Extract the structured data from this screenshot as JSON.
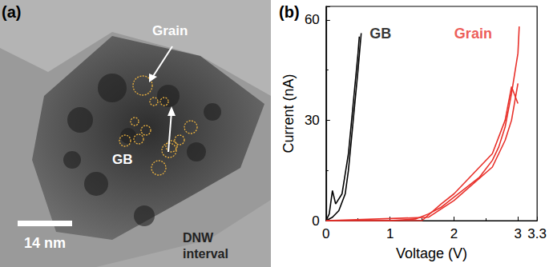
{
  "chart_data": {
    "type": "line",
    "title": "(b)",
    "x_label": "Voltage (V)",
    "y_label": "Current (nA)",
    "xlim": [
      0,
      3.3
    ],
    "xticks": [
      0,
      1,
      2,
      3
    ],
    "ylim": [
      0,
      64
    ],
    "yticks": [
      0,
      30,
      60
    ],
    "grid": false,
    "series": [
      {
        "name": "GB",
        "color": "#000000",
        "x": [
          0,
          0.1,
          0.2,
          0.3,
          0.35,
          0.4,
          0.45,
          0.5,
          0.55
        ],
        "values": [
          0,
          1,
          3,
          8,
          15,
          25,
          35,
          45,
          56
        ]
      },
      {
        "name": "GB",
        "color": "#000000",
        "x": [
          0,
          0.05,
          0.1,
          0.15,
          0.25,
          0.3,
          0.35,
          0.4,
          0.45,
          0.5,
          0.52
        ],
        "values": [
          0,
          2,
          9,
          5,
          8,
          14,
          20,
          30,
          40,
          50,
          55
        ]
      },
      {
        "name": "Grain",
        "color": "#e8312b",
        "x": [
          0,
          1.0,
          1.4,
          1.6,
          1.8,
          2.0,
          2.2,
          2.4,
          2.6,
          2.7,
          2.8,
          2.9,
          3.0,
          3.02
        ],
        "values": [
          0,
          0,
          0.5,
          2,
          4,
          7,
          10,
          13,
          18,
          22,
          28,
          38,
          50,
          58
        ]
      },
      {
        "name": "Grain",
        "color": "#e8312b",
        "x": [
          0,
          1.5,
          1.8,
          2.0,
          2.2,
          2.4,
          2.6,
          2.8,
          2.9,
          3.0
        ],
        "values": [
          0,
          0,
          5,
          8,
          12,
          16,
          20,
          30,
          40,
          35
        ]
      },
      {
        "name": "Grain",
        "color": "#e8312b",
        "x": [
          0,
          1.6,
          2.0,
          2.3,
          2.6,
          2.8,
          2.9,
          3.0
        ],
        "values": [
          0,
          1,
          6,
          11,
          16,
          24,
          30,
          41
        ]
      }
    ],
    "annotations": [
      {
        "text": "GB",
        "x": 0.85,
        "y": 56,
        "color": "#000000"
      },
      {
        "text": "Grain",
        "x": 2.3,
        "y": 56,
        "color": "#e8312b"
      }
    ]
  },
  "image_panel": {
    "panel_label": "(a)",
    "labels": [
      "Grain",
      "GB"
    ],
    "scale_bar": "14 nm",
    "region_label": "DNW interval"
  }
}
